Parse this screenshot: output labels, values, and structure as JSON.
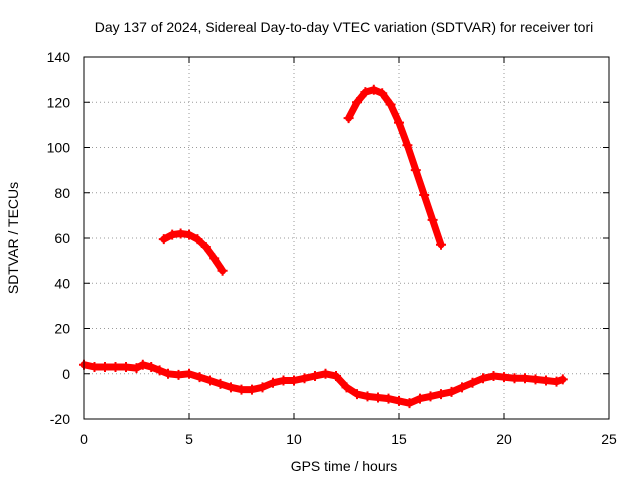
{
  "chart_data": {
    "type": "line",
    "title": "Day 137 of 2024, Sidereal Day-to-day VTEC variation (SDTVAR) for receiver tori",
    "xlabel": "GPS time / hours",
    "ylabel": "SDTVAR / TECUs",
    "xlim": [
      0,
      25
    ],
    "ylim": [
      -20,
      140
    ],
    "xticks": [
      0,
      5,
      10,
      15,
      20,
      25
    ],
    "yticks": [
      -20,
      0,
      20,
      40,
      60,
      80,
      100,
      120,
      140
    ],
    "xtick_labels": [
      "0",
      "5",
      "10",
      "15",
      "20",
      "25"
    ],
    "ytick_labels": [
      "-20",
      "0",
      "20",
      "40",
      "60",
      "80",
      "100",
      "120",
      "140"
    ],
    "grid": true,
    "series_color": "#ff0000",
    "series": [
      {
        "name": "baseline",
        "x": [
          0,
          0.5,
          1,
          1.5,
          2,
          2.5,
          2.8,
          3.2,
          3.6,
          4,
          4.5,
          5,
          5.5,
          6,
          6.5,
          7,
          7.5,
          8,
          8.5,
          9,
          9.5,
          10,
          10.5,
          11,
          11.5,
          12,
          12.5,
          13,
          13.5,
          14,
          14.5,
          15,
          15.5,
          16,
          16.5,
          17,
          17.5,
          18,
          18.5,
          19,
          19.5,
          20,
          20.5,
          21,
          21.5,
          22,
          22.5,
          22.8
        ],
        "y": [
          4,
          3,
          3,
          3,
          3,
          2.5,
          4,
          3,
          1.5,
          0,
          -0.5,
          0,
          -1.5,
          -3,
          -4.5,
          -6,
          -7,
          -7,
          -6,
          -4,
          -3,
          -3,
          -2,
          -1,
          0,
          -1,
          -6,
          -9,
          -10,
          -10.5,
          -11,
          -12,
          -13,
          -11,
          -10,
          -9,
          -8,
          -6,
          -4,
          -2,
          -1,
          -1.5,
          -2,
          -2,
          -2.5,
          -3,
          -3.5,
          -2.5
        ]
      },
      {
        "name": "arc-1",
        "x": [
          3.8,
          4.2,
          4.6,
          5.0,
          5.4,
          5.8,
          6.2,
          6.6
        ],
        "y": [
          59.5,
          61.5,
          62,
          61.5,
          59.5,
          56,
          51,
          45.5
        ]
      },
      {
        "name": "arc-2",
        "x": [
          12.6,
          13.0,
          13.4,
          13.8,
          14.2,
          14.6,
          15.0,
          15.4,
          15.8,
          16.2,
          16.6,
          17.0
        ],
        "y": [
          113,
          120,
          124.5,
          125.5,
          124,
          119,
          111,
          101,
          90,
          79,
          68,
          57
        ]
      }
    ]
  }
}
